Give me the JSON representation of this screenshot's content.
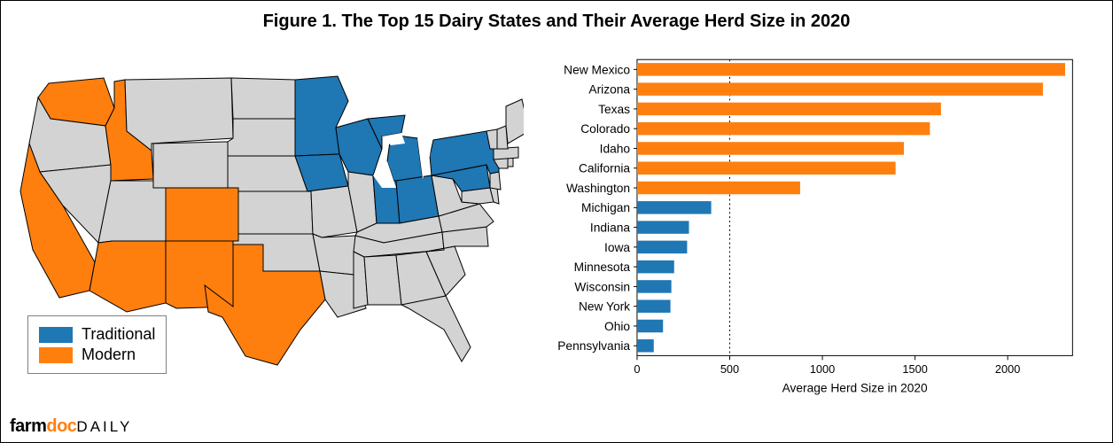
{
  "title": "Figure 1. The Top 15 Dairy States and Their Average Herd Size in 2020",
  "title_fontsize": 20,
  "colors": {
    "traditional": "#1f77b4",
    "modern": "#ff7f0e",
    "other_state": "#d3d3d3",
    "state_border": "#000000",
    "chart_border": "#000000",
    "reference_line": "#000000",
    "logo_accent": "#ff7f0e"
  },
  "legend": {
    "items": [
      {
        "label": "Traditional",
        "color_key": "traditional"
      },
      {
        "label": "Modern",
        "color_key": "modern"
      }
    ]
  },
  "map": {
    "traditional_states": [
      "Minnesota",
      "Wisconsin",
      "Iowa",
      "Michigan",
      "Indiana",
      "Ohio",
      "Pennsylvania",
      "New York"
    ],
    "modern_states": [
      "Washington",
      "Idaho",
      "California",
      "Arizona",
      "New Mexico",
      "Colorado",
      "Texas"
    ]
  },
  "chart": {
    "type": "horizontal_bar",
    "xlabel": "Average Herd Size in 2020",
    "xlim": [
      0,
      2350
    ],
    "xticks": [
      0,
      500,
      1000,
      1500,
      2000
    ],
    "reference_x": 500,
    "reference_dash": "2,3",
    "bar_gap_ratio": 0.35,
    "label_fontsize": 14,
    "tick_fontsize": 13,
    "rows": [
      {
        "label": "New Mexico",
        "value": 2310,
        "cat": "modern"
      },
      {
        "label": "Arizona",
        "value": 2190,
        "cat": "modern"
      },
      {
        "label": "Texas",
        "value": 1640,
        "cat": "modern"
      },
      {
        "label": "Colorado",
        "value": 1580,
        "cat": "modern"
      },
      {
        "label": "Idaho",
        "value": 1440,
        "cat": "modern"
      },
      {
        "label": "California",
        "value": 1395,
        "cat": "modern"
      },
      {
        "label": "Washington",
        "value": 880,
        "cat": "modern"
      },
      {
        "label": "Michigan",
        "value": 400,
        "cat": "traditional"
      },
      {
        "label": "Indiana",
        "value": 280,
        "cat": "traditional"
      },
      {
        "label": "Iowa",
        "value": 270,
        "cat": "traditional"
      },
      {
        "label": "Minnesota",
        "value": 200,
        "cat": "traditional"
      },
      {
        "label": "Wisconsin",
        "value": 185,
        "cat": "traditional"
      },
      {
        "label": "New York",
        "value": 180,
        "cat": "traditional"
      },
      {
        "label": "Ohio",
        "value": 140,
        "cat": "traditional"
      },
      {
        "label": "Pennsylvania",
        "value": 90,
        "cat": "traditional"
      }
    ]
  },
  "logo": {
    "part1": "farm",
    "part2": "doc",
    "part3": "DAILY"
  }
}
